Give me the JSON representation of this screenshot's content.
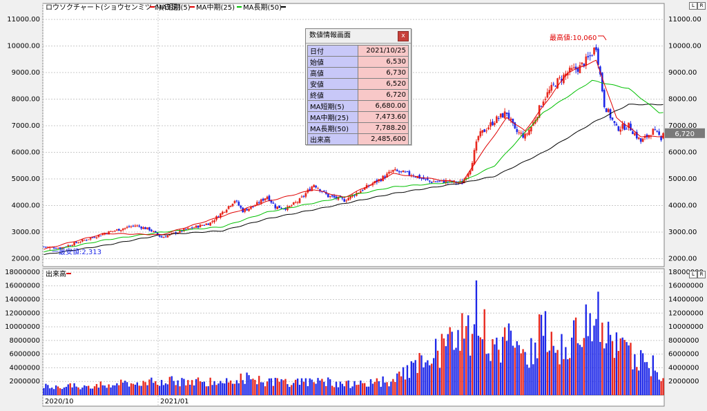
{
  "legend": {
    "main_title": "ロウソクチャート(ショウセンミツイ)(日足)",
    "ma_short": "MA短期(5)",
    "ma_mid": "MA中期(25)",
    "ma_long": "MA長期(50)",
    "volume_title": "出来高"
  },
  "annotations": {
    "high": "最高値:10,060",
    "low": "一最安値:2,313",
    "last_price": "6,720"
  },
  "popup": {
    "title": "数値情報画面",
    "close": "x",
    "rows": [
      {
        "label": "日付",
        "value": "2021/10/25"
      },
      {
        "label": "始値",
        "value": "6,530"
      },
      {
        "label": "高値",
        "value": "6,730"
      },
      {
        "label": "安値",
        "value": "6,520"
      },
      {
        "label": "終値",
        "value": "6,720"
      },
      {
        "label": "MA短期(5)",
        "value": "6,680.00"
      },
      {
        "label": "MA中期(25)",
        "value": "7,473.60"
      },
      {
        "label": "MA長期(50)",
        "value": "7,788.20"
      },
      {
        "label": "出来高",
        "value": "2,485,600"
      }
    ]
  },
  "buttons": {
    "l": "L",
    "r": "R"
  },
  "colors": {
    "up": "#e8281e",
    "down": "#1e28e8",
    "ma_short": "#e00000",
    "ma_mid": "#00c000",
    "ma_long": "#000000",
    "grid": "#c8c8c8"
  },
  "chart_data": [
    {
      "type": "candlestick",
      "title": "ロウソクチャート(ショウセンミツイ)(日足)",
      "ylim": [
        1700,
        11600
      ],
      "y_ticks": [
        2000,
        3000,
        4000,
        5000,
        6000,
        7000,
        8000,
        9000,
        10000,
        11000
      ],
      "y_tick_labels": [
        "2000.00",
        "3000.00",
        "4000.00",
        "5000.00",
        "6000.00",
        "7000.00",
        "8000.00",
        "9000.00",
        "10000.00",
        "11000.00"
      ],
      "x_labels": [
        "2020/10",
        "2021/01"
      ],
      "highest": 10060,
      "lowest": 2313,
      "last_close": 6720,
      "anchors": [
        [
          0,
          2450
        ],
        [
          8,
          2400
        ],
        [
          20,
          2700
        ],
        [
          32,
          3000
        ],
        [
          45,
          3250
        ],
        [
          52,
          3100
        ],
        [
          58,
          2800
        ],
        [
          68,
          3050
        ],
        [
          75,
          3200
        ],
        [
          82,
          3350
        ],
        [
          88,
          3750
        ],
        [
          94,
          4200
        ],
        [
          98,
          3800
        ],
        [
          104,
          4000
        ],
        [
          110,
          4350
        ],
        [
          114,
          3950
        ],
        [
          120,
          3900
        ],
        [
          126,
          4200
        ],
        [
          133,
          4800
        ],
        [
          140,
          4350
        ],
        [
          148,
          4200
        ],
        [
          158,
          4650
        ],
        [
          166,
          5000
        ],
        [
          172,
          5300
        ],
        [
          182,
          5150
        ],
        [
          190,
          4900
        ],
        [
          198,
          4900
        ],
        [
          206,
          4850
        ],
        [
          210,
          5400
        ],
        [
          214,
          6600
        ],
        [
          222,
          7200
        ],
        [
          228,
          7500
        ],
        [
          232,
          6800
        ],
        [
          237,
          6600
        ],
        [
          241,
          7100
        ],
        [
          246,
          8000
        ],
        [
          252,
          8600
        ],
        [
          258,
          9000
        ],
        [
          264,
          9200
        ],
        [
          269,
          9600
        ],
        [
          272,
          10000
        ],
        [
          276,
          7800
        ],
        [
          282,
          6900
        ],
        [
          288,
          7000
        ],
        [
          294,
          6400
        ],
        [
          300,
          6800
        ],
        [
          305,
          6500
        ]
      ],
      "ma_short_anchors": [
        [
          0,
          2350
        ],
        [
          30,
          2950
        ],
        [
          58,
          2900
        ],
        [
          88,
          3600
        ],
        [
          110,
          4150
        ],
        [
          133,
          4600
        ],
        [
          148,
          4300
        ],
        [
          172,
          5200
        ],
        [
          206,
          4850
        ],
        [
          214,
          5800
        ],
        [
          228,
          7300
        ],
        [
          237,
          6800
        ],
        [
          258,
          9000
        ],
        [
          272,
          9450
        ],
        [
          282,
          7300
        ],
        [
          294,
          6600
        ],
        [
          305,
          6600
        ]
      ],
      "ma_mid_anchors": [
        [
          0,
          2250
        ],
        [
          30,
          2700
        ],
        [
          58,
          3000
        ],
        [
          88,
          3200
        ],
        [
          110,
          3750
        ],
        [
          140,
          4200
        ],
        [
          172,
          4700
        ],
        [
          206,
          4900
        ],
        [
          222,
          5500
        ],
        [
          246,
          7500
        ],
        [
          270,
          8700
        ],
        [
          288,
          8400
        ],
        [
          303,
          7500
        ]
      ],
      "ma_long_anchors": [
        [
          0,
          2150
        ],
        [
          30,
          2500
        ],
        [
          58,
          2900
        ],
        [
          88,
          3050
        ],
        [
          110,
          3500
        ],
        [
          140,
          3950
        ],
        [
          172,
          4450
        ],
        [
          206,
          4850
        ],
        [
          222,
          5100
        ],
        [
          246,
          6000
        ],
        [
          270,
          7100
        ],
        [
          288,
          7800
        ],
        [
          303,
          7800
        ]
      ]
    },
    {
      "type": "bar",
      "title": "出来高",
      "ylim": [
        0,
        18500000
      ],
      "y_ticks": [
        2000000,
        4000000,
        6000000,
        8000000,
        10000000,
        12000000,
        14000000,
        16000000,
        18000000
      ],
      "y_tick_labels": [
        "2000000",
        "4000000",
        "6000000",
        "8000000",
        "10000000",
        "12000000",
        "14000000",
        "16000000",
        "18000000"
      ],
      "spikes": [
        [
          0,
          1400000
        ],
        [
          20,
          1400000
        ],
        [
          50,
          2200000
        ],
        [
          88,
          2300000
        ],
        [
          95,
          3000000
        ],
        [
          110,
          2100000
        ],
        [
          135,
          2300000
        ],
        [
          150,
          1800000
        ],
        [
          172,
          2300000
        ],
        [
          210,
          10500000
        ],
        [
          213,
          13900000
        ],
        [
          222,
          6600000
        ],
        [
          229,
          10200000
        ],
        [
          235,
          5200000
        ],
        [
          241,
          7800000
        ],
        [
          246,
          12500000
        ],
        [
          252,
          8000000
        ],
        [
          258,
          6400000
        ],
        [
          264,
          11500000
        ],
        [
          270,
          14000000
        ],
        [
          272,
          15800000
        ],
        [
          276,
          10400000
        ],
        [
          283,
          7800000
        ],
        [
          292,
          6300000
        ],
        [
          300,
          4800000
        ],
        [
          305,
          2485600
        ]
      ]
    }
  ]
}
